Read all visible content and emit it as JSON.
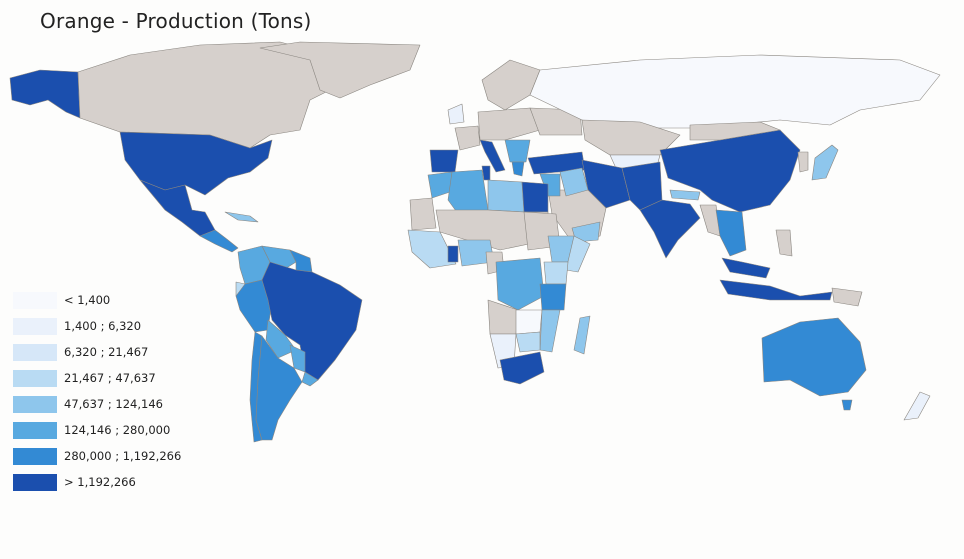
{
  "map": {
    "title": "Orange - Production (Tons)",
    "colors": {
      "no_data": "#d6d0cc",
      "class_1": "#f7f9fd",
      "class_2": "#eaf1fb",
      "class_3": "#d6e7f8",
      "class_4": "#b9dbf3",
      "class_5": "#8ec6ec",
      "class_6": "#58a9e0",
      "class_7": "#338ad4",
      "class_8": "#1b4fae"
    },
    "legend": [
      {
        "label": "< 1,400",
        "color": "#f7f9fd"
      },
      {
        "label": "1,400 ; 6,320",
        "color": "#eaf1fb"
      },
      {
        "label": "6,320 ; 21,467",
        "color": "#d6e7f8"
      },
      {
        "label": "21,467 ; 47,637",
        "color": "#b9dbf3"
      },
      {
        "label": "47,637 ; 124,146",
        "color": "#8ec6ec"
      },
      {
        "label": "124,146 ; 280,000",
        "color": "#58a9e0"
      },
      {
        "label": "280,000 ; 1,192,266",
        "color": "#338ad4"
      },
      {
        "label": "> 1,192,266",
        "color": "#1b4fae"
      }
    ]
  }
}
